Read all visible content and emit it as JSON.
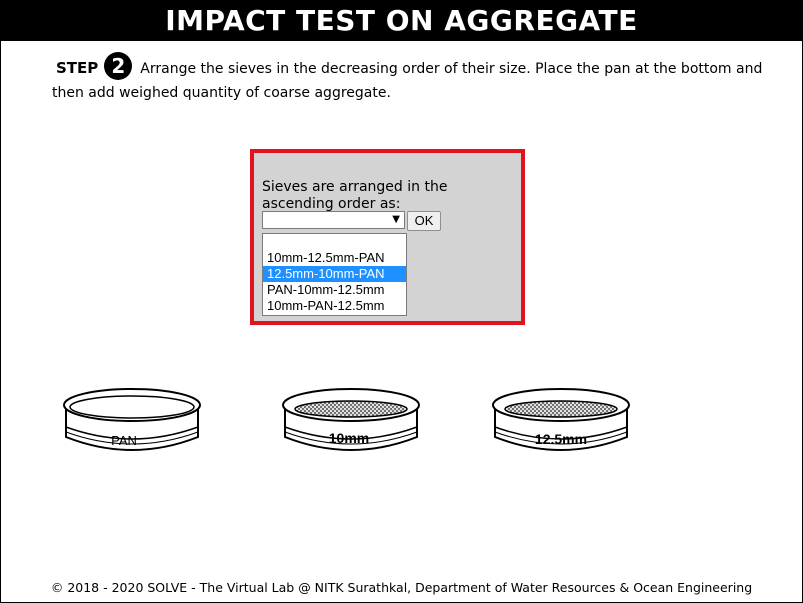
{
  "header": {
    "title": "IMPACT TEST ON AGGREGATE"
  },
  "step": {
    "label": "STEP",
    "number": "2",
    "instruction": "Arrange the sieves in the decreasing order of their size. Place the pan at the bottom and then add weighed quantity of coarse aggregate."
  },
  "panel": {
    "prompt": "Sieves are arranged in the ascending order as:",
    "select_value": "",
    "ok_label": "OK",
    "options": [
      "10mm-12.5mm-PAN",
      "12.5mm-10mm-PAN",
      "PAN-10mm-12.5mm",
      "10mm-PAN-12.5mm"
    ],
    "highlighted_option": "12.5mm-10mm-PAN",
    "accent_border": "#e3131e",
    "highlight_color": "#1e90ff"
  },
  "sieves": [
    {
      "label": "PAN",
      "has_mesh": false
    },
    {
      "label": "10mm",
      "has_mesh": true
    },
    {
      "label": "12.5mm",
      "has_mesh": true
    }
  ],
  "footer": {
    "text": "© 2018 - 2020 SOLVE - The Virtual Lab @ NITK Surathkal, Department of Water Resources & Ocean Engineering"
  }
}
